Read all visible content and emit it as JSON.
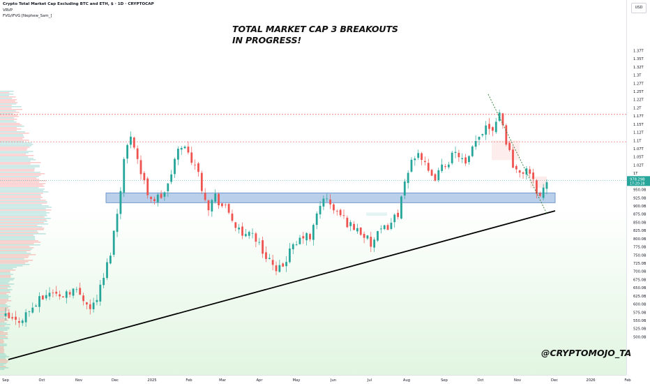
{
  "header": {
    "title": "Crypto Total Market Cap Excluding BTC and ETH, $ · 1D · CRYPTOCAP",
    "indicator1": "VRVP",
    "indicator2": "FVG/iFVG [Nephew_Sam_]"
  },
  "annotation": "TOTAL MARKET CAP 3 BREAKOUTS IN PROGRESS!",
  "handle": "@CRYPTOMOJO_TA",
  "currency": "USD",
  "colors": {
    "up": "#26a69a",
    "down": "#ef5350",
    "zone": "#7fa7d8",
    "trendline": "#000000"
  },
  "chart_data": {
    "type": "candlestick",
    "title": "Crypto Total Market Cap Excluding BTC and ETH, $ · 1D · CRYPTOCAP",
    "ylim": [
      490,
      1400
    ],
    "y_unit": "B",
    "y_ticks": [
      {
        "v": 500,
        "label": "500.0B"
      },
      {
        "v": 525,
        "label": "525.0B"
      },
      {
        "v": 550,
        "label": "550.0B"
      },
      {
        "v": 575,
        "label": "575.0B"
      },
      {
        "v": 600,
        "label": "600.0B"
      },
      {
        "v": 625,
        "label": "625.0B"
      },
      {
        "v": 650,
        "label": "650.0B"
      },
      {
        "v": 675,
        "label": "675.0B"
      },
      {
        "v": 700,
        "label": "700.0B"
      },
      {
        "v": 725,
        "label": "725.0B"
      },
      {
        "v": 750,
        "label": "750.0B"
      },
      {
        "v": 775,
        "label": "775.0B"
      },
      {
        "v": 800,
        "label": "800.0B"
      },
      {
        "v": 825,
        "label": "825.0B"
      },
      {
        "v": 850,
        "label": "850.0B"
      },
      {
        "v": 875,
        "label": "875.0B"
      },
      {
        "v": 900,
        "label": "900.0B"
      },
      {
        "v": 925,
        "label": "925.0B"
      },
      {
        "v": 950,
        "label": "950.0B"
      },
      {
        "v": 1000,
        "label": "1T"
      },
      {
        "v": 1025,
        "label": "1.02T"
      },
      {
        "v": 1050,
        "label": "1.05T"
      },
      {
        "v": 1075,
        "label": "1.07T"
      },
      {
        "v": 1100,
        "label": "1.1T"
      },
      {
        "v": 1125,
        "label": "1.12T"
      },
      {
        "v": 1150,
        "label": "1.15T"
      },
      {
        "v": 1175,
        "label": "1.17T"
      },
      {
        "v": 1200,
        "label": "1.2T"
      },
      {
        "v": 1225,
        "label": "1.22T"
      },
      {
        "v": 1250,
        "label": "1.25T"
      },
      {
        "v": 1275,
        "label": "1.27T"
      },
      {
        "v": 1300,
        "label": "1.3T"
      },
      {
        "v": 1325,
        "label": "1.32T"
      },
      {
        "v": 1350,
        "label": "1.35T"
      },
      {
        "v": 1375,
        "label": "1.37T"
      }
    ],
    "x_labels": [
      "Sep",
      "Oct",
      "Nov",
      "Dec",
      "2025",
      "Feb",
      "Mar",
      "Apr",
      "May",
      "Jun",
      "Jul",
      "Aug",
      "Sep",
      "Oct",
      "Nov",
      "Dec",
      "2026",
      "Feb"
    ],
    "price_label": {
      "value": 978.29,
      "text": "978.29B",
      "countdown": "17:20:28"
    },
    "resistance_lines": [
      1180,
      1096
    ],
    "support_zone": [
      910,
      940
    ],
    "trendline": [
      [
        0,
        525
      ],
      [
        136,
        888
      ]
    ],
    "path": [
      [
        0,
        560
      ],
      [
        3,
        545
      ],
      [
        5,
        560
      ],
      [
        8,
        590
      ],
      [
        10,
        610
      ],
      [
        12,
        630
      ],
      [
        14,
        640
      ],
      [
        16,
        620
      ],
      [
        18,
        640
      ],
      [
        20,
        645
      ],
      [
        22,
        630
      ],
      [
        24,
        610
      ],
      [
        25,
        585
      ],
      [
        27,
        620
      ],
      [
        29,
        680
      ],
      [
        31,
        760
      ],
      [
        33,
        880
      ],
      [
        35,
        1040
      ],
      [
        37,
        1120
      ],
      [
        38,
        1090
      ],
      [
        40,
        1000
      ],
      [
        42,
        940
      ],
      [
        44,
        920
      ],
      [
        46,
        930
      ],
      [
        48,
        960
      ],
      [
        50,
        1040
      ],
      [
        52,
        1090
      ],
      [
        54,
        1060
      ],
      [
        56,
        1030
      ],
      [
        58,
        960
      ],
      [
        60,
        900
      ],
      [
        62,
        930
      ],
      [
        64,
        900
      ],
      [
        66,
        880
      ],
      [
        68,
        840
      ],
      [
        70,
        800
      ],
      [
        72,
        830
      ],
      [
        74,
        800
      ],
      [
        76,
        760
      ],
      [
        78,
        740
      ],
      [
        80,
        690
      ],
      [
        82,
        720
      ],
      [
        84,
        760
      ],
      [
        86,
        780
      ],
      [
        88,
        810
      ],
      [
        90,
        800
      ],
      [
        92,
        870
      ],
      [
        94,
        930
      ],
      [
        96,
        900
      ],
      [
        98,
        880
      ],
      [
        100,
        860
      ],
      [
        102,
        840
      ],
      [
        104,
        830
      ],
      [
        106,
        810
      ],
      [
        108,
        780
      ],
      [
        110,
        810
      ],
      [
        112,
        830
      ],
      [
        114,
        850
      ],
      [
        116,
        880
      ],
      [
        118,
        960
      ],
      [
        120,
        1040
      ],
      [
        122,
        1070
      ],
      [
        124,
        1020
      ],
      [
        126,
        980
      ],
      [
        128,
        1000
      ],
      [
        130,
        1030
      ],
      [
        132,
        1050
      ],
      [
        134,
        1060
      ],
      [
        136,
        1020
      ],
      [
        138,
        1070
      ],
      [
        140,
        1110
      ],
      [
        142,
        1150
      ],
      [
        144,
        1140
      ],
      [
        146,
        1190
      ],
      [
        148,
        1100
      ],
      [
        150,
        1030
      ],
      [
        152,
        990
      ],
      [
        154,
        1020
      ],
      [
        156,
        970
      ],
      [
        158,
        930
      ],
      [
        160,
        975
      ]
    ]
  }
}
